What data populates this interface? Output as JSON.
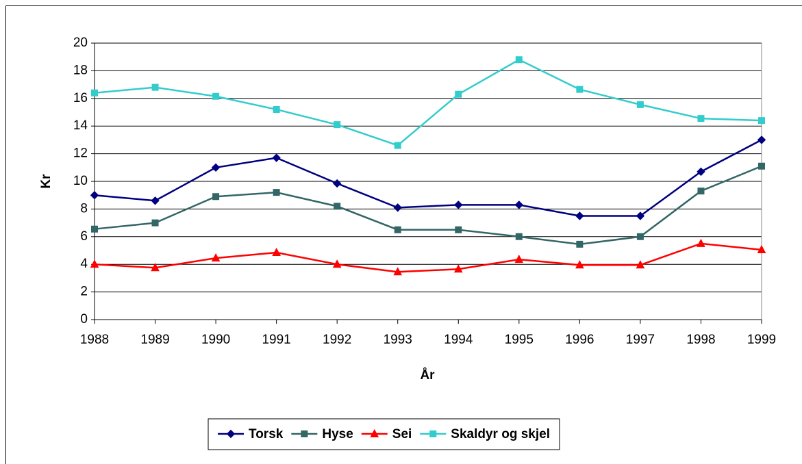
{
  "chart_data": {
    "type": "line",
    "x_label": "År",
    "y_label": "Kr",
    "categories": [
      "1988",
      "1989",
      "1990",
      "1991",
      "1992",
      "1993",
      "1994",
      "1995",
      "1996",
      "1997",
      "1998",
      "1999"
    ],
    "series": [
      {
        "name": "Torsk",
        "color": "#000080",
        "marker": "diamond",
        "values": [
          9.0,
          8.6,
          11.0,
          11.7,
          9.85,
          8.1,
          8.3,
          8.3,
          7.5,
          7.5,
          10.7,
          13.0
        ]
      },
      {
        "name": "Hyse",
        "color": "#336666",
        "marker": "square",
        "values": [
          6.55,
          7.0,
          8.9,
          9.2,
          8.2,
          6.5,
          6.5,
          6.0,
          5.45,
          6.0,
          9.3,
          11.1
        ]
      },
      {
        "name": "Sei",
        "color": "#ff0000",
        "marker": "triangle",
        "values": [
          4.0,
          3.75,
          4.45,
          4.85,
          4.0,
          3.45,
          3.65,
          4.35,
          3.95,
          3.95,
          5.5,
          5.05
        ]
      },
      {
        "name": "Skaldyr og skjel",
        "color": "#33cccc",
        "marker": "square",
        "values": [
          16.4,
          16.8,
          16.15,
          15.2,
          14.1,
          12.6,
          16.3,
          18.8,
          16.65,
          15.55,
          14.55,
          14.4
        ]
      }
    ],
    "ylim": [
      0,
      20
    ],
    "yticks": [
      0,
      2,
      4,
      6,
      8,
      10,
      12,
      14,
      16,
      18,
      20
    ],
    "grid": true,
    "legend": "bottom"
  }
}
